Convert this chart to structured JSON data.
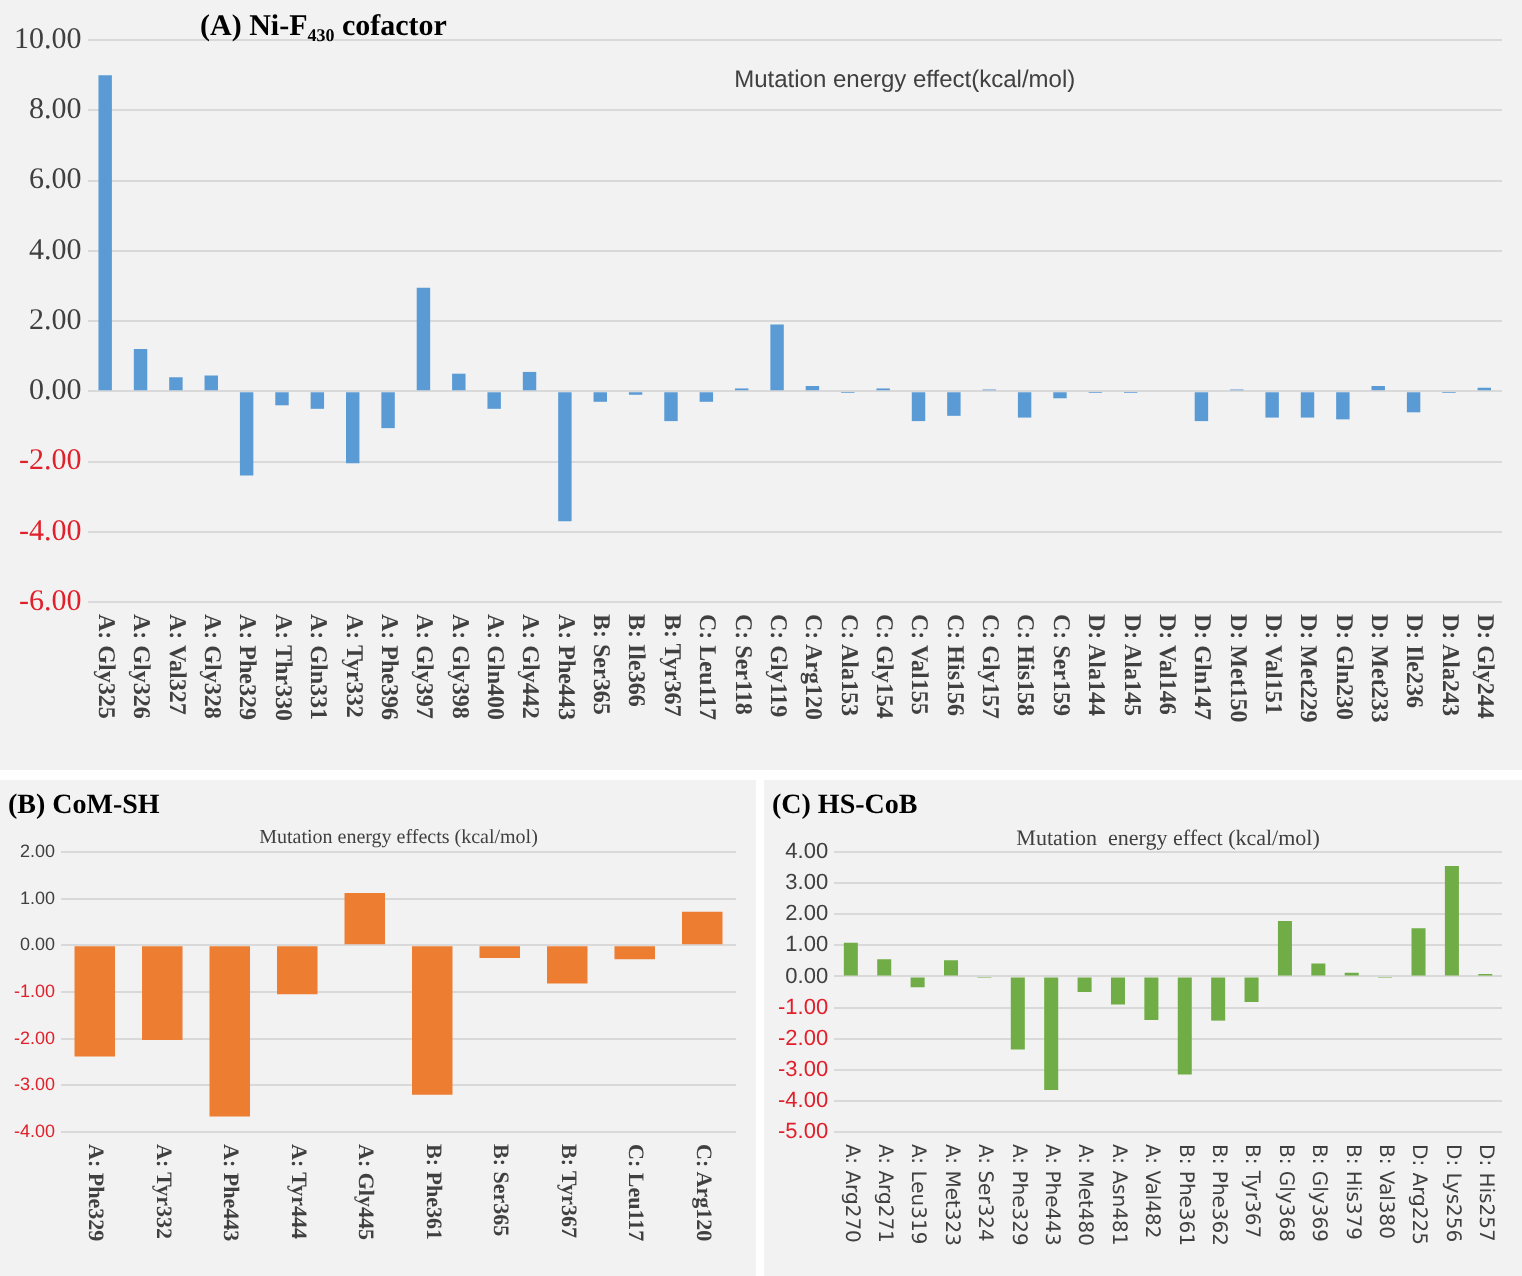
{
  "chart_data": [
    {
      "type": "bar",
      "title": "(A) Ni-F₄₃₀ cofactor",
      "subtitle": "Mutation energy effect(kcal/mol)",
      "categories": [
        "A: Gly325",
        "A: Gly326",
        "A: Val327",
        "A: Gly328",
        "A: Phe329",
        "A: Thr330",
        "A: Gln331",
        "A: Tyr332",
        "A: Phe396",
        "A: Gly397",
        "A: Gly398",
        "A: Gln400",
        "A: Gly442",
        "A: Phe443",
        "B: Ser365",
        "B: Ile366",
        "B: Tyr367",
        "C: Leu117",
        "C: Ser118",
        "C: Gly119",
        "C: Arg120",
        "C: Ala153",
        "C: Gly154",
        "C: Val155",
        "C: His156",
        "C: Gly157",
        "C: His158",
        "C: Ser159",
        "D: Ala144",
        "D: Ala145",
        "D: Val146",
        "D: Gln147",
        "D: Met150",
        "D: Val151",
        "D: Met229",
        "D: Gln230",
        "D: Met233",
        "D: Ile236",
        "D: Ala243",
        "D: Gly244"
      ],
      "values": [
        9.0,
        1.2,
        0.4,
        0.45,
        -2.4,
        -0.4,
        -0.5,
        -2.05,
        -1.05,
        2.95,
        0.5,
        -0.5,
        0.55,
        -3.7,
        -0.3,
        -0.1,
        -0.85,
        -0.3,
        0.08,
        1.9,
        0.15,
        -0.05,
        0.08,
        -0.85,
        -0.7,
        0.05,
        -0.75,
        -0.2,
        -0.05,
        -0.05,
        0.0,
        -0.85,
        0.05,
        -0.75,
        -0.75,
        -0.8,
        0.15,
        -0.6,
        -0.05,
        0.1
      ],
      "color": "#5b9bd5",
      "ylim": [
        -6,
        10
      ],
      "yticks": [
        {
          "value": -6,
          "label": "-6.00"
        },
        {
          "value": -4,
          "label": "-4.00"
        },
        {
          "value": -2,
          "label": "-2.00"
        },
        {
          "value": 0,
          "label": "0.00"
        },
        {
          "value": 2,
          "label": "2.00"
        },
        {
          "value": 4,
          "label": "4.00"
        },
        {
          "value": 6,
          "label": "6.00"
        },
        {
          "value": 8,
          "label": "8.00"
        },
        {
          "value": 10,
          "label": "10.00"
        }
      ],
      "grid": "y",
      "legend": false
    },
    {
      "type": "bar",
      "title": "(B) CoM-SH",
      "subtitle": "Mutation energy effects (kcal/mol)",
      "categories": [
        "A: Phe329",
        "A: Tyr332",
        "A: Phe443",
        "A: Tyr444",
        "A: Gly445",
        "B: Phe361",
        "B: Ser365",
        "B: Tyr367",
        "C: Leu117",
        "C: Arg120"
      ],
      "values": [
        -2.38,
        -2.03,
        -3.67,
        -1.05,
        1.12,
        -3.2,
        -0.27,
        -0.82,
        -0.3,
        0.72
      ],
      "color": "#ed7d31",
      "ylim": [
        -4,
        2
      ],
      "yticks": [
        {
          "value": -4,
          "label": "-4.00"
        },
        {
          "value": -3,
          "label": "-3.00"
        },
        {
          "value": -2,
          "label": "-2.00"
        },
        {
          "value": -1,
          "label": "-1.00"
        },
        {
          "value": 0,
          "label": "0.00"
        },
        {
          "value": 1,
          "label": "1.00"
        },
        {
          "value": 2,
          "label": "2.00"
        }
      ],
      "grid": "y",
      "legend": false
    },
    {
      "type": "bar",
      "title": "(C) HS-CoB",
      "subtitle": "Mutation  energy effect (kcal/mol)",
      "categories": [
        "A: Arg270",
        "A: Arg271",
        "A: Leu319",
        "A: Met323",
        "A: Ser324",
        "A: Phe329",
        "A: Phe443",
        "A: Met480",
        "A: Asn481",
        "A: Val482",
        "B: Phe361",
        "B: Phe362",
        "B: Tyr367",
        "B: Gly368",
        "B: Gly369",
        "B: His379",
        "B: Val380",
        "D: Arg225",
        "D: Lys256",
        "D: His257"
      ],
      "values": [
        1.08,
        0.55,
        -0.35,
        0.52,
        -0.05,
        -2.35,
        -3.65,
        -0.5,
        -0.9,
        -1.4,
        -3.15,
        -1.42,
        -0.82,
        1.78,
        0.42,
        0.12,
        -0.05,
        1.55,
        3.55,
        0.08
      ],
      "color": "#70ad47",
      "ylim": [
        -5,
        4
      ],
      "yticks": [
        {
          "value": -5,
          "label": "-5.00"
        },
        {
          "value": -4,
          "label": "-4.00"
        },
        {
          "value": -3,
          "label": "-3.00"
        },
        {
          "value": -2,
          "label": "-2.00"
        },
        {
          "value": -1,
          "label": "-1.00"
        },
        {
          "value": 0,
          "label": "0.00"
        },
        {
          "value": 1,
          "label": "1.00"
        },
        {
          "value": 2,
          "label": "2.00"
        },
        {
          "value": 3,
          "label": "3.00"
        },
        {
          "value": 4,
          "label": "4.00"
        }
      ],
      "grid": "y",
      "legend": false
    }
  ]
}
